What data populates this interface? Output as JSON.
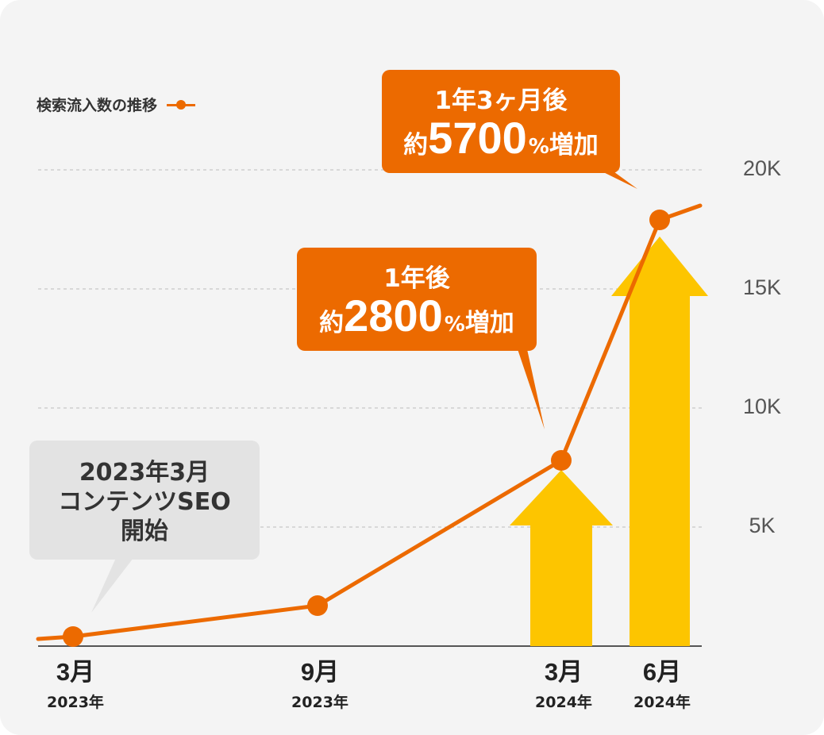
{
  "colors": {
    "background": "#f4f4f4",
    "line": "#ec6a00",
    "arrow": "#fdc500",
    "callout": "#ec6a00",
    "note": "#e3e3e3",
    "grid": "#c8c8c8",
    "axis": "#555555"
  },
  "legend": {
    "label": "検索流入数の推移"
  },
  "callouts": {
    "first": {
      "line1": "1年後",
      "prefix": "約",
      "value": "2800",
      "percent": "%",
      "suffix": "増加"
    },
    "second": {
      "line1": "1年3ヶ月後",
      "prefix": "約",
      "value": "5700",
      "percent": "%",
      "suffix": "増加"
    }
  },
  "note": {
    "line1": "2023年3月",
    "line2": "コンテンツSEO",
    "line3": "開始"
  },
  "chart_data": {
    "type": "line",
    "title": "",
    "xlabel": "",
    "ylabel": "",
    "ylim": [
      0,
      20000
    ],
    "y_ticks": [
      "5K",
      "10K",
      "15K",
      "20K"
    ],
    "y_tick_values": [
      5000,
      10000,
      15000,
      20000
    ],
    "grid": "horizontal dashed",
    "legend_position": "top-left",
    "categories": [
      {
        "month": "3月",
        "year": "2023年"
      },
      {
        "month": "9月",
        "year": "2023年"
      },
      {
        "month": "3月",
        "year": "2024年"
      },
      {
        "month": "6月",
        "year": "2024年"
      }
    ],
    "series": [
      {
        "name": "検索流入数の推移",
        "points": [
          {
            "date": "2023-02",
            "value": 300
          },
          {
            "date": "2023-03",
            "value": 400
          },
          {
            "date": "2023-09",
            "value": 1700
          },
          {
            "date": "2024-03",
            "value": 7800
          },
          {
            "date": "2024-06",
            "value": 17900
          },
          {
            "date": "2024-07",
            "value": 18500
          }
        ],
        "markers": [
          {
            "date": "2023-03",
            "value": 400
          },
          {
            "date": "2023-09",
            "value": 1700
          },
          {
            "date": "2024-03",
            "value": 7800
          },
          {
            "date": "2024-06",
            "value": 17900
          }
        ]
      }
    ],
    "highlight_arrows": [
      {
        "date": "2024-03",
        "value": 7400
      },
      {
        "date": "2024-06",
        "value": 17200
      }
    ]
  }
}
